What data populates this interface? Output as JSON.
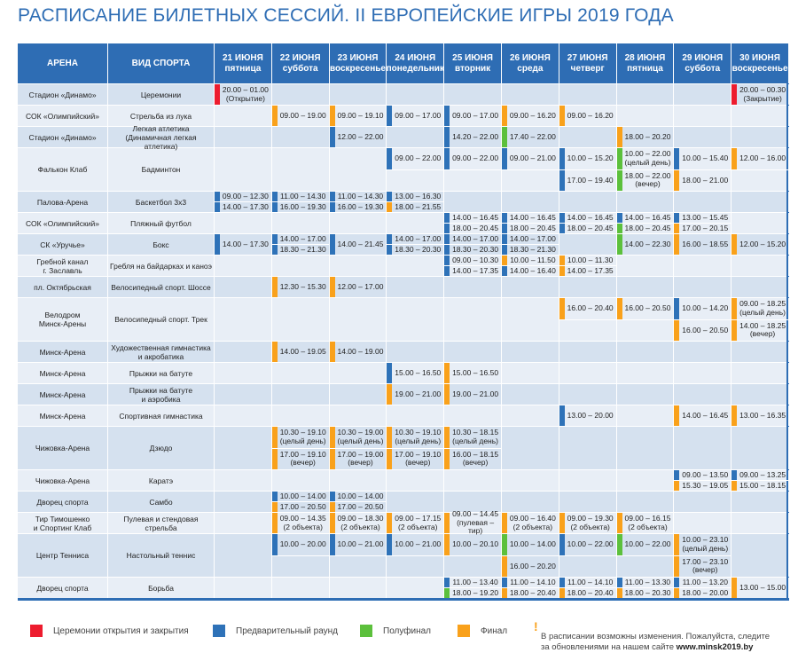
{
  "title": "РАСПИСАНИЕ БИЛЕТНЫХ СЕССИЙ. II ЕВРОПЕЙСКИЕ ИГРЫ 2019 ГОДА",
  "colors": {
    "r": "#ed1c2e",
    "b": "#2e72b8",
    "g": "#5cc03c",
    "o": "#f9a11b"
  },
  "headers": {
    "arena": "АРЕНА",
    "sport": "ВИД СПОРТА",
    "days": [
      "21 ИЮНЯ\nпятница",
      "22 ИЮНЯ\nсуббота",
      "23 ИЮНЯ\nвоскресенье",
      "24 ИЮНЯ\nпонедельник",
      "25 ИЮНЯ\nвторник",
      "26 ИЮНЯ\nсреда",
      "27 ИЮНЯ\nчетверг",
      "28 ИЮНЯ\nпятница",
      "29 ИЮНЯ\nсуббота",
      "30 ИЮНЯ\nвоскресенье"
    ]
  },
  "rows": [
    {
      "arena": "Стадион «Динамо»",
      "sport": "Церемонии",
      "double": false,
      "days": [
        [
          {
            "t": "20.00 – 01.00\n(Открытие)",
            "c": "r"
          }
        ],
        [],
        [],
        [],
        [],
        [],
        [],
        [],
        [],
        [
          {
            "t": "20.00 – 00.30\n(Закрытие)",
            "c": "r"
          }
        ]
      ]
    },
    {
      "arena": "СОК «Олимпийский»",
      "sport": "Стрельба из лука",
      "double": false,
      "days": [
        [],
        [
          {
            "t": "09.00 – 19.00",
            "c": "o"
          }
        ],
        [
          {
            "t": "09.00 – 19.10",
            "c": "o"
          }
        ],
        [
          {
            "t": "09.00 – 17.00",
            "c": "b"
          }
        ],
        [
          {
            "t": "09.00 – 17.00",
            "c": "b"
          }
        ],
        [
          {
            "t": "09.00 – 16.20",
            "c": "o"
          }
        ],
        [
          {
            "t": "09.00 – 16.20",
            "c": "o"
          }
        ],
        [],
        [],
        []
      ]
    },
    {
      "arena": "Стадион «Динамо»",
      "sport": "Легкая атлетика\n(Динамичная легкая атлетика)",
      "double": false,
      "days": [
        [],
        [],
        [
          {
            "t": "12.00 – 22.00",
            "c": "b"
          }
        ],
        [],
        [
          {
            "t": "14.20 – 22.00",
            "c": "b"
          }
        ],
        [
          {
            "t": "17.40 – 22.00",
            "c": "g"
          }
        ],
        [],
        [
          {
            "t": "18.00 – 20.20",
            "c": "o"
          }
        ],
        [],
        []
      ]
    },
    {
      "arena": "Фалькон Клаб",
      "sport": "Бадминтон",
      "double": true,
      "days": [
        [],
        [],
        [],
        [
          {
            "t": "09.00 – 22.00",
            "c": "b"
          },
          null
        ],
        [
          {
            "t": "09.00 – 22.00",
            "c": "b"
          },
          null
        ],
        [
          {
            "t": "09.00 – 21.00",
            "c": "b"
          },
          null
        ],
        [
          {
            "t": "10.00 – 15.20",
            "c": "b"
          },
          {
            "t": "17.00 – 19.40",
            "c": "b"
          }
        ],
        [
          {
            "t": "10.00 – 22.00\n(целый день)",
            "c": "g"
          },
          {
            "t": "18.00 – 22.00\n(вечер)",
            "c": "g"
          }
        ],
        [
          {
            "t": "10.00 – 15.40",
            "c": "b"
          },
          {
            "t": "18.00 – 21.00",
            "c": "o"
          }
        ],
        [
          {
            "t": "12.00 – 16.00",
            "c": "o"
          },
          null
        ]
      ]
    },
    {
      "arena": "Палова-Арена",
      "sport": "Баскетбол 3х3",
      "double": false,
      "days": [
        [
          {
            "t": "09.00 – 12.30",
            "c": "b"
          },
          {
            "t": "14.00 – 17.30",
            "c": "b"
          }
        ],
        [
          {
            "t": "11.00 – 14.30",
            "c": "b"
          },
          {
            "t": "16.00 – 19.30",
            "c": "b"
          }
        ],
        [
          {
            "t": "11.00 – 14.30",
            "c": "b"
          },
          {
            "t": "16.00 – 19.30",
            "c": "b"
          }
        ],
        [
          {
            "t": "13.00 – 16.30",
            "c": "b"
          },
          {
            "t": "18.00 – 21.55",
            "c": "o"
          }
        ],
        [],
        [],
        [],
        [],
        [],
        []
      ]
    },
    {
      "arena": "СОК «Олимпийский»",
      "sport": "Пляжный футбол",
      "double": false,
      "days": [
        [],
        [],
        [],
        [],
        [
          {
            "t": "14.00 – 16.45",
            "c": "b"
          },
          {
            "t": "18.00 – 20.45",
            "c": "b"
          }
        ],
        [
          {
            "t": "14.00 – 16.45",
            "c": "b"
          },
          {
            "t": "18.00 – 20.45",
            "c": "b"
          }
        ],
        [
          {
            "t": "14.00 – 16.45",
            "c": "b"
          },
          {
            "t": "18.00 – 20.45",
            "c": "b"
          }
        ],
        [
          {
            "t": "14.00 – 16.45",
            "c": "b"
          },
          {
            "t": "18.00 – 20.45",
            "c": "g"
          }
        ],
        [
          {
            "t": "13.00 – 15.45",
            "c": "b"
          },
          {
            "t": "17.00 – 20.15",
            "c": "o"
          }
        ],
        []
      ]
    },
    {
      "arena": "СК «Уручье»",
      "sport": "Бокс",
      "double": false,
      "days": [
        [
          {
            "t": "14.00 – 17.30",
            "c": "b"
          }
        ],
        [
          {
            "t": "14.00 – 17.00",
            "c": "b"
          },
          {
            "t": "18.30 – 21.30",
            "c": "b"
          }
        ],
        [
          {
            "t": "14.00 – 21.45",
            "c": "b"
          }
        ],
        [
          {
            "t": "14.00 – 17.00",
            "c": "b"
          },
          {
            "t": "18.30 – 20.30",
            "c": "b"
          }
        ],
        [
          {
            "t": "14.00 – 17.00",
            "c": "b"
          },
          {
            "t": "18.30 – 20.30",
            "c": "b"
          }
        ],
        [
          {
            "t": "14.00 – 17.00",
            "c": "b"
          },
          {
            "t": "18.30 – 21.30",
            "c": "b"
          }
        ],
        [],
        [
          {
            "t": "14.00 – 22.30",
            "c": "g"
          }
        ],
        [
          {
            "t": "16.00 – 18.55",
            "c": "o"
          }
        ],
        [
          {
            "t": "12.00 – 15.20",
            "c": "o"
          }
        ]
      ]
    },
    {
      "arena": "Гребной канал\nг. Заславль",
      "sport": "Гребля на байдарках и каноэ",
      "double": false,
      "days": [
        [],
        [],
        [],
        [],
        [
          {
            "t": "09.00 – 10.30",
            "c": "b"
          },
          {
            "t": "14.00 – 17.35",
            "c": "b"
          }
        ],
        [
          {
            "t": "10.00 – 11.50",
            "c": "o"
          },
          {
            "t": "14.00 – 16.40",
            "c": "b"
          }
        ],
        [
          {
            "t": "10.00 – 11.30",
            "c": "o"
          },
          {
            "t": "14.00 – 17.35",
            "c": "o"
          }
        ],
        [],
        [],
        []
      ]
    },
    {
      "arena": "пл. Октябрьская",
      "sport": "Велосипедный спорт. Шоссе",
      "double": false,
      "days": [
        [],
        [
          {
            "t": "12.30 – 15.30",
            "c": "o"
          }
        ],
        [
          {
            "t": "12.00 – 17.00",
            "c": "o"
          }
        ],
        [],
        [],
        [],
        [],
        [],
        [],
        []
      ]
    },
    {
      "arena": "Велодром\nМинск-Арены",
      "sport": "Велосипедный спорт. Трек",
      "double": true,
      "days": [
        [],
        [],
        [],
        [],
        [],
        [],
        [
          {
            "t": "16.00 – 20.40",
            "c": "o"
          },
          null
        ],
        [
          {
            "t": "16.00 – 20.50",
            "c": "o"
          },
          null
        ],
        [
          {
            "t": "10.00 – 14.20",
            "c": "b"
          },
          {
            "t": "16.00 – 20.50",
            "c": "o"
          }
        ],
        [
          {
            "t": "09.00 – 18.25\n(целый день)",
            "c": "o"
          },
          {
            "t": "14.00 – 18.25\n(вечер)",
            "c": "o"
          }
        ]
      ]
    },
    {
      "arena": "Минск-Арена",
      "sport": "Художественная гимнастика\nи акробатика",
      "double": false,
      "days": [
        [],
        [
          {
            "t": "14.00 – 19.05",
            "c": "o"
          }
        ],
        [
          {
            "t": "14.00 – 19.00",
            "c": "o"
          }
        ],
        [],
        [],
        [],
        [],
        [],
        [],
        []
      ]
    },
    {
      "arena": "Минск-Арена",
      "sport": "Прыжки на батуте",
      "double": false,
      "days": [
        [],
        [],
        [],
        [
          {
            "t": "15.00 – 16.50",
            "c": "b"
          }
        ],
        [
          {
            "t": "15.00 – 16.50",
            "c": "o"
          }
        ],
        [],
        [],
        [],
        [],
        []
      ]
    },
    {
      "arena": "Минск-Арена",
      "sport": "Прыжки на батуте\nи аэробика",
      "double": false,
      "days": [
        [],
        [],
        [],
        [
          {
            "t": "19.00 – 21.00",
            "c": "o"
          }
        ],
        [
          {
            "t": "19.00 – 21.00",
            "c": "o"
          }
        ],
        [],
        [],
        [],
        [],
        []
      ]
    },
    {
      "arena": "Минск-Арена",
      "sport": "Спортивная гимнастика",
      "double": false,
      "days": [
        [],
        [],
        [],
        [],
        [],
        [],
        [
          {
            "t": "13.00 – 20.00",
            "c": "b"
          }
        ],
        [],
        [
          {
            "t": "14.00 – 16.45",
            "c": "o"
          }
        ],
        [
          {
            "t": "13.00 – 16.35",
            "c": "o"
          }
        ]
      ]
    },
    {
      "arena": "Чижовка-Арена",
      "sport": "Дзюдо",
      "double": true,
      "days": [
        [],
        [
          {
            "t": "10.30 – 19.10\n(целый день)",
            "c": "o"
          },
          {
            "t": "17.00 – 19.10\n(вечер)",
            "c": "o"
          }
        ],
        [
          {
            "t": "10.30 – 19.00\n(целый день)",
            "c": "o"
          },
          {
            "t": "17.00 – 19.00\n(вечер)",
            "c": "o"
          }
        ],
        [
          {
            "t": "10.30 – 19.10\n(целый день)",
            "c": "o"
          },
          {
            "t": "17.00 – 19.10\n(вечер)",
            "c": "o"
          }
        ],
        [
          {
            "t": "10.30 – 18.15\n(целый день)",
            "c": "o"
          },
          {
            "t": "16.00 – 18.15\n(вечер)",
            "c": "o"
          }
        ],
        [],
        [],
        [],
        [],
        []
      ]
    },
    {
      "arena": "Чижовка-Арена",
      "sport": "Каратэ",
      "double": false,
      "days": [
        [],
        [],
        [],
        [],
        [],
        [],
        [],
        [],
        [
          {
            "t": "09.00 – 13.50",
            "c": "b"
          },
          {
            "t": "15.30 – 19.05",
            "c": "o"
          }
        ],
        [
          {
            "t": "09.00 – 13.25",
            "c": "b"
          },
          {
            "t": "15.00 – 18.15",
            "c": "o"
          }
        ]
      ]
    },
    {
      "arena": "Дворец спорта",
      "sport": "Самбо",
      "double": false,
      "days": [
        [],
        [
          {
            "t": "10.00 – 14.00",
            "c": "b"
          },
          {
            "t": "17.00 – 20.50",
            "c": "o"
          }
        ],
        [
          {
            "t": "10.00 – 14.00",
            "c": "b"
          },
          {
            "t": "17.00 – 20.50",
            "c": "o"
          }
        ],
        [],
        [],
        [],
        [],
        [],
        [],
        []
      ]
    },
    {
      "arena": "Тир Тимошенко\nи Спортинг Клаб",
      "sport": "Пулевая и стендовая\nстрельба",
      "double": false,
      "days": [
        [],
        [
          {
            "t": "09.00 – 14.35\n(2 объекта)",
            "c": "o"
          }
        ],
        [
          {
            "t": "09.00 – 18.30\n(2 объекта)",
            "c": "o"
          }
        ],
        [
          {
            "t": "09.00 – 17.15\n(2 объекта)",
            "c": "o"
          }
        ],
        [
          {
            "t": "09.00 – 14.45\n(пулевая – тир)",
            "c": "o"
          }
        ],
        [
          {
            "t": "09.00 – 16.40\n(2 объекта)",
            "c": "o"
          }
        ],
        [
          {
            "t": "09.00 – 19.30\n(2 объекта)",
            "c": "o"
          }
        ],
        [
          {
            "t": "09.00 – 16.15\n(2 объекта)",
            "c": "o"
          }
        ],
        [],
        []
      ]
    },
    {
      "arena": "Центр Тенниса",
      "sport": "Настольный теннис",
      "double": true,
      "days": [
        [],
        [
          {
            "t": "10.00 – 20.00",
            "c": "b"
          },
          null
        ],
        [
          {
            "t": "10.00 – 21.00",
            "c": "b"
          },
          null
        ],
        [
          {
            "t": "10.00 – 21.00",
            "c": "b"
          },
          null
        ],
        [
          {
            "t": "10.00 – 20.10",
            "c": "o"
          },
          null
        ],
        [
          {
            "t": "10.00 – 14.00",
            "c": "g"
          },
          {
            "t": "16.00 – 20.20",
            "c": "o"
          }
        ],
        [
          {
            "t": "10.00 – 22.00",
            "c": "b"
          },
          null
        ],
        [
          {
            "t": "10.00 – 22.00",
            "c": "g"
          },
          null
        ],
        [
          {
            "t": "10.00 – 23.10\n(целый день)",
            "c": "o"
          },
          {
            "t": "17.00 – 23.10\n(вечер)",
            "c": "o"
          }
        ],
        []
      ]
    },
    {
      "arena": "Дворец спорта",
      "sport": "Борьба",
      "double": false,
      "days": [
        [],
        [],
        [],
        [],
        [
          {
            "t": "11.00 – 13.40",
            "c": "b"
          },
          {
            "t": "18.00 – 19.20",
            "c": "g"
          }
        ],
        [
          {
            "t": "11.00 – 14.10",
            "c": "b"
          },
          {
            "t": "18.00 – 20.40",
            "c": "o"
          }
        ],
        [
          {
            "t": "11.00 – 14.10",
            "c": "b"
          },
          {
            "t": "18.00 – 20.40",
            "c": "o"
          }
        ],
        [
          {
            "t": "11.00 – 13.30",
            "c": "b"
          },
          {
            "t": "18.00 – 20.30",
            "c": "o"
          }
        ],
        [
          {
            "t": "11.00 – 13.20",
            "c": "b"
          },
          {
            "t": "18.00 – 20.00",
            "c": "o"
          }
        ],
        [
          {
            "t": "13.00 – 15.00",
            "c": "o"
          }
        ]
      ]
    }
  ],
  "legend": [
    {
      "label": "Церемонии открытия и закрытия",
      "c": "r"
    },
    {
      "label": "Предварительный раунд",
      "c": "b"
    },
    {
      "label": "Полуфинал",
      "c": "g"
    },
    {
      "label": "Финал",
      "c": "o"
    }
  ],
  "note": {
    "text": "В расписании возможны изменения. Пожалуйста, следите\nза обновлениями на нашем сайте ",
    "url": "www.minsk2019.by"
  }
}
